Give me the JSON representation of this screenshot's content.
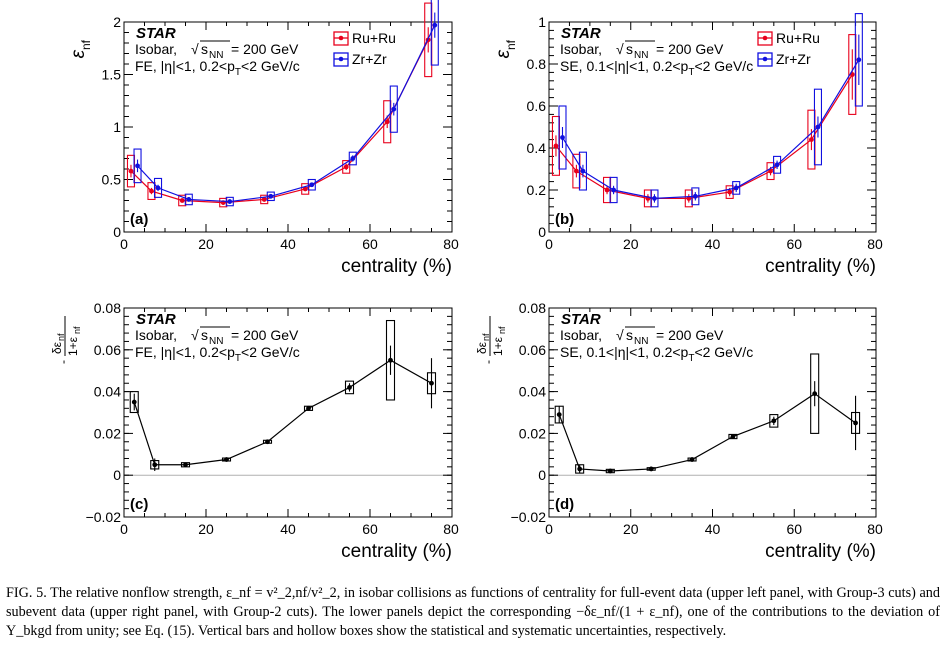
{
  "figure": {
    "panels": [
      {
        "id": "a",
        "tag": "(a)",
        "ylabel": "ε_nf",
        "xlabel": "centrality (%)",
        "star": "STAR",
        "info1": "Isobar, √s_NN = 200 GeV",
        "info2": "FE, |η|<1, 0.2<p_T<2 GeV/c",
        "xticks": [
          "0",
          "20",
          "40",
          "60",
          "80"
        ],
        "yticks": [
          "0",
          "0.5",
          "1",
          "1.5",
          "2"
        ]
      },
      {
        "id": "b",
        "tag": "(b)",
        "ylabel": "ε_nf",
        "xlabel": "centrality (%)",
        "star": "STAR",
        "info1": "Isobar, √s_NN = 200 GeV",
        "info2": "SE, 0.1<|η|<1, 0.2<p_T<2 GeV/c",
        "xticks": [
          "0",
          "20",
          "40",
          "60",
          "80"
        ],
        "yticks": [
          "0",
          "0.2",
          "0.4",
          "0.6",
          "0.8",
          "1"
        ]
      },
      {
        "id": "c",
        "tag": "(c)",
        "ylabel": "- δε_nf / 1+ε_nf",
        "xlabel": "centrality (%)",
        "star": "STAR",
        "info1": "Isobar, √s_NN = 200 GeV",
        "info2": "FE, |η|<1, 0.2<p_T<2 GeV/c",
        "xticks": [
          "0",
          "20",
          "40",
          "60",
          "80"
        ],
        "yticks": [
          "−0.02",
          "0",
          "0.02",
          "0.04",
          "0.06",
          "0.08"
        ]
      },
      {
        "id": "d",
        "tag": "(d)",
        "ylabel": "- δε_nf / 1+ε_nf",
        "xlabel": "centrality (%)",
        "star": "STAR",
        "info1": "Isobar, √s_NN = 200 GeV",
        "info2": "SE, 0.1<|η|<1, 0.2<p_T<2 GeV/c",
        "xticks": [
          "0",
          "20",
          "40",
          "60",
          "80"
        ],
        "yticks": [
          "−0.02",
          "0",
          "0.02",
          "0.04",
          "0.06",
          "0.08"
        ]
      }
    ],
    "legend": [
      "Ru+Ru",
      "Zr+Zr"
    ],
    "colors": {
      "ru": "#e8001c",
      "zr": "#1010e0",
      "ratio": "#000000",
      "zero_line": "#b0b0b0"
    },
    "caption": "FIG. 5. The relative nonflow strength, ε_nf = v²_2,nf/v²_2, in isobar collisions as functions of centrality for full-event data (upper left panel, with Group-3 cuts) and subevent data (upper right panel, with Group-2 cuts). The lower panels depict the corresponding −δε_nf/(1 + ε_nf), one of the contributions to the deviation of Y_bkgd from unity; see Eq. (15). Vertical bars and hollow boxes show the statistical and systematic uncertainties, respectively."
  },
  "chart_data": [
    {
      "type": "line",
      "panel": "(a)",
      "xlabel": "centrality (%)",
      "ylabel": "ε_nf",
      "xlim": [
        0,
        80
      ],
      "ylim": [
        0,
        2
      ],
      "x": [
        2.5,
        7.5,
        15,
        25,
        35,
        45,
        55,
        65,
        75
      ],
      "series": [
        {
          "name": "Ru+Ru",
          "values": [
            0.58,
            0.39,
            0.3,
            0.28,
            0.31,
            0.41,
            0.62,
            1.05,
            1.83
          ],
          "stat": [
            0.06,
            0.03,
            0.02,
            0.02,
            0.02,
            0.02,
            0.03,
            0.06,
            0.12
          ],
          "sys": [
            0.15,
            0.08,
            0.05,
            0.04,
            0.04,
            0.05,
            0.06,
            0.2,
            0.35
          ]
        },
        {
          "name": "Zr+Zr",
          "values": [
            0.63,
            0.42,
            0.31,
            0.29,
            0.34,
            0.45,
            0.7,
            1.17,
            1.97
          ],
          "stat": [
            0.06,
            0.03,
            0.02,
            0.02,
            0.02,
            0.02,
            0.03,
            0.06,
            0.12
          ],
          "sys": [
            0.16,
            0.09,
            0.05,
            0.04,
            0.04,
            0.05,
            0.06,
            0.22,
            0.38
          ]
        }
      ],
      "grid": false,
      "legend_position": "top-right"
    },
    {
      "type": "line",
      "panel": "(b)",
      "xlabel": "centrality (%)",
      "ylabel": "ε_nf",
      "xlim": [
        0,
        80
      ],
      "ylim": [
        0,
        1
      ],
      "x": [
        2.5,
        7.5,
        15,
        25,
        35,
        45,
        55,
        65,
        75
      ],
      "series": [
        {
          "name": "Ru+Ru",
          "values": [
            0.41,
            0.29,
            0.2,
            0.16,
            0.16,
            0.19,
            0.29,
            0.44,
            0.75
          ],
          "stat": [
            0.05,
            0.03,
            0.02,
            0.02,
            0.02,
            0.02,
            0.02,
            0.05,
            0.12
          ],
          "sys": [
            0.14,
            0.08,
            0.06,
            0.04,
            0.04,
            0.03,
            0.04,
            0.14,
            0.19
          ]
        },
        {
          "name": "Zr+Zr",
          "values": [
            0.45,
            0.29,
            0.2,
            0.16,
            0.17,
            0.21,
            0.32,
            0.5,
            0.82
          ],
          "stat": [
            0.05,
            0.03,
            0.02,
            0.02,
            0.02,
            0.02,
            0.02,
            0.05,
            0.12
          ],
          "sys": [
            0.15,
            0.09,
            0.06,
            0.04,
            0.04,
            0.03,
            0.04,
            0.18,
            0.22
          ]
        }
      ],
      "grid": false,
      "legend_position": "top-right"
    },
    {
      "type": "line",
      "panel": "(c)",
      "xlabel": "centrality (%)",
      "ylabel": "- δε_nf / 1+ε_nf",
      "xlim": [
        0,
        80
      ],
      "ylim": [
        -0.02,
        0.08
      ],
      "x": [
        2.5,
        7.5,
        15,
        25,
        35,
        45,
        55,
        65,
        75
      ],
      "series": [
        {
          "name": "",
          "values": [
            0.035,
            0.005,
            0.005,
            0.0075,
            0.016,
            0.032,
            0.042,
            0.055,
            0.044
          ],
          "stat": [
            0.004,
            0.003,
            0.001,
            0.001,
            0.001,
            0.001,
            0.002,
            0.007,
            0.012
          ],
          "sys": [
            0.005,
            0.002,
            0.001,
            0.0007,
            0.0007,
            0.001,
            0.003,
            0.019,
            0.005
          ]
        }
      ],
      "grid": false
    },
    {
      "type": "line",
      "panel": "(d)",
      "xlabel": "centrality (%)",
      "ylabel": "- δε_nf / 1+ε_nf",
      "xlim": [
        0,
        80
      ],
      "ylim": [
        -0.02,
        0.08
      ],
      "x": [
        2.5,
        7.5,
        15,
        25,
        35,
        45,
        55,
        65,
        75
      ],
      "series": [
        {
          "name": "",
          "values": [
            0.029,
            0.003,
            0.002,
            0.003,
            0.0075,
            0.0185,
            0.026,
            0.039,
            0.025
          ],
          "stat": [
            0.004,
            0.002,
            0.001,
            0.001,
            0.001,
            0.001,
            0.002,
            0.006,
            0.013
          ],
          "sys": [
            0.004,
            0.002,
            0.0008,
            0.0006,
            0.0007,
            0.001,
            0.003,
            0.019,
            0.005
          ]
        }
      ],
      "grid": false
    }
  ]
}
